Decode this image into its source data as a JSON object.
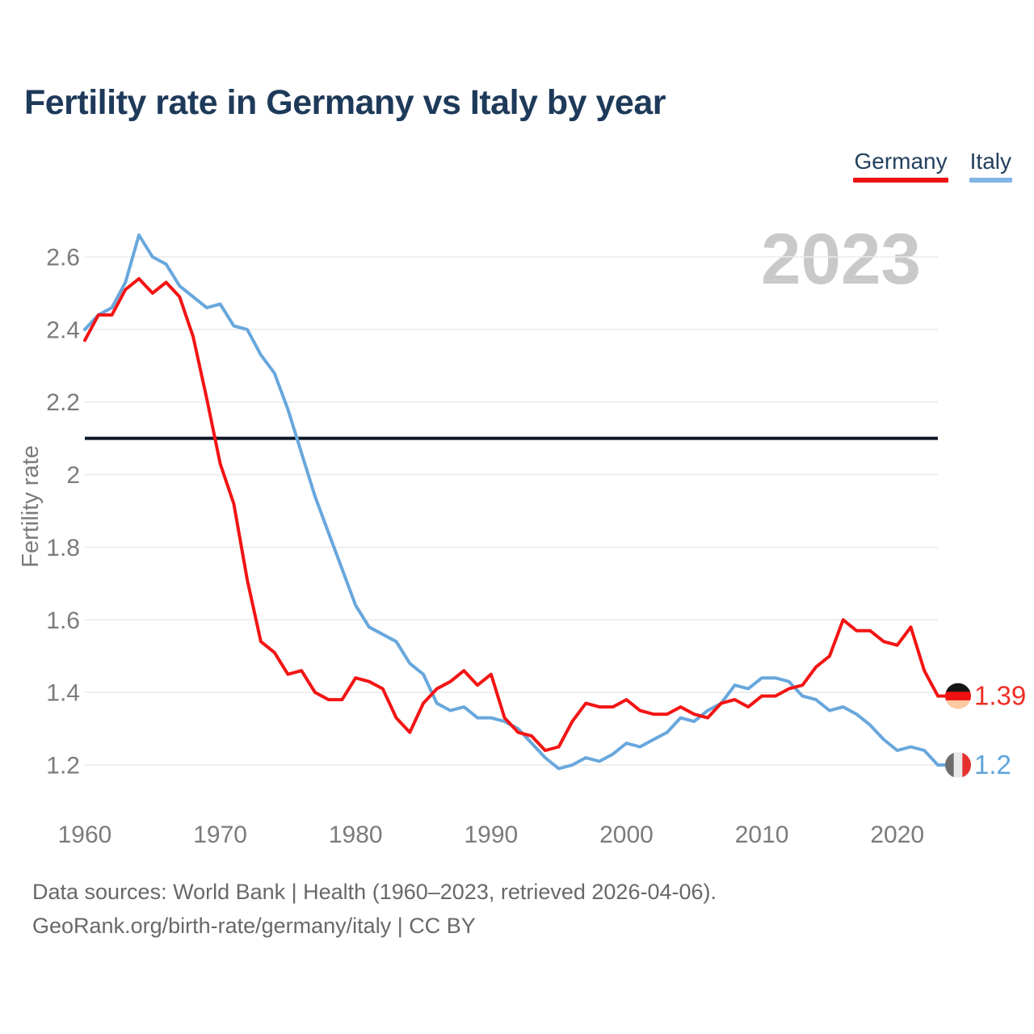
{
  "title": "Fertility rate in Germany vs Italy by year",
  "watermark_year": "2023",
  "legend": [
    {
      "label": "Germany",
      "underline_color": "#f01212"
    },
    {
      "label": "Italy",
      "underline_color": "#82b6e8"
    }
  ],
  "chart_data": {
    "type": "line",
    "title": "Fertility rate in Germany vs Italy by year",
    "xlabel": "",
    "ylabel": "Fertility rate",
    "x": [
      1960,
      1961,
      1962,
      1963,
      1964,
      1965,
      1966,
      1967,
      1968,
      1969,
      1970,
      1971,
      1972,
      1973,
      1974,
      1975,
      1976,
      1977,
      1978,
      1979,
      1980,
      1981,
      1982,
      1983,
      1984,
      1985,
      1986,
      1987,
      1988,
      1989,
      1990,
      1991,
      1992,
      1993,
      1994,
      1995,
      1996,
      1997,
      1998,
      1999,
      2000,
      2001,
      2002,
      2003,
      2004,
      2005,
      2006,
      2007,
      2008,
      2009,
      2010,
      2011,
      2012,
      2013,
      2014,
      2015,
      2016,
      2017,
      2018,
      2019,
      2020,
      2021,
      2022,
      2023
    ],
    "series": [
      {
        "name": "Italy",
        "color": "#68a7dc",
        "values": [
          2.4,
          2.44,
          2.46,
          2.53,
          2.66,
          2.6,
          2.58,
          2.52,
          2.49,
          2.46,
          2.47,
          2.41,
          2.4,
          2.33,
          2.28,
          2.18,
          2.06,
          1.94,
          1.84,
          1.74,
          1.64,
          1.58,
          1.56,
          1.54,
          1.48,
          1.45,
          1.37,
          1.35,
          1.36,
          1.33,
          1.33,
          1.32,
          1.3,
          1.26,
          1.22,
          1.19,
          1.2,
          1.22,
          1.21,
          1.23,
          1.26,
          1.25,
          1.27,
          1.29,
          1.33,
          1.32,
          1.35,
          1.37,
          1.42,
          1.41,
          1.44,
          1.44,
          1.43,
          1.39,
          1.38,
          1.35,
          1.36,
          1.34,
          1.31,
          1.27,
          1.24,
          1.25,
          1.24,
          1.2
        ]
      },
      {
        "name": "Germany",
        "color": "#f31414",
        "values": [
          2.37,
          2.44,
          2.44,
          2.51,
          2.54,
          2.5,
          2.53,
          2.49,
          2.38,
          2.21,
          2.03,
          1.92,
          1.71,
          1.54,
          1.51,
          1.45,
          1.46,
          1.4,
          1.38,
          1.38,
          1.44,
          1.43,
          1.41,
          1.33,
          1.29,
          1.37,
          1.41,
          1.43,
          1.46,
          1.42,
          1.45,
          1.33,
          1.29,
          1.28,
          1.24,
          1.25,
          1.32,
          1.37,
          1.36,
          1.36,
          1.38,
          1.35,
          1.34,
          1.34,
          1.36,
          1.34,
          1.33,
          1.37,
          1.38,
          1.36,
          1.39,
          1.39,
          1.41,
          1.42,
          1.47,
          1.5,
          1.6,
          1.57,
          1.57,
          1.54,
          1.53,
          1.58,
          1.46,
          1.39
        ]
      }
    ],
    "yticks": [
      {
        "value": 2.6,
        "label": "2.6"
      },
      {
        "value": 2.4,
        "label": "2.4"
      },
      {
        "value": 2.2,
        "label": "2.2"
      },
      {
        "value": 2.0,
        "label": "2"
      },
      {
        "value": 1.8,
        "label": "1.8"
      },
      {
        "value": 1.6,
        "label": "1.6"
      },
      {
        "value": 1.4,
        "label": "1.4"
      },
      {
        "value": 1.2,
        "label": "1.2"
      }
    ],
    "xticks": [
      1960,
      1970,
      1980,
      1990,
      2000,
      2010,
      2020
    ],
    "ylim": [
      1.2,
      2.6
    ],
    "xlim": [
      1960,
      2023
    ],
    "grid": "horizontal",
    "gridline_color": "#eaeaea",
    "axis_text_color": "#7b7b7b",
    "reference_line": {
      "value": 2.1,
      "color": "#0b1626"
    },
    "end_markers": [
      {
        "series": "Italy",
        "value_label": "1.2",
        "label_color": "#5fa3da",
        "flag": "italy-flag-icon",
        "orientation": "vertical",
        "band_colors": [
          "#6d6d6d",
          "#e9e9e9",
          "#e63030"
        ]
      },
      {
        "series": "Germany",
        "value_label": "1.39",
        "label_color": "#ef2e26",
        "flag": "germany-flag-icon",
        "orientation": "horizontal",
        "band_colors": [
          "#161616",
          "#f01212",
          "#fdc9a0"
        ]
      }
    ],
    "watermark": "2023",
    "watermark_color": "#c9c9c9",
    "legend_position": "top-right"
  },
  "footer": {
    "line1": "Data sources: World Bank | Health (1960–2023, retrieved 2026-04-06).",
    "line2": "GeoRank.org/birth-rate/germany/italy | CC BY"
  }
}
